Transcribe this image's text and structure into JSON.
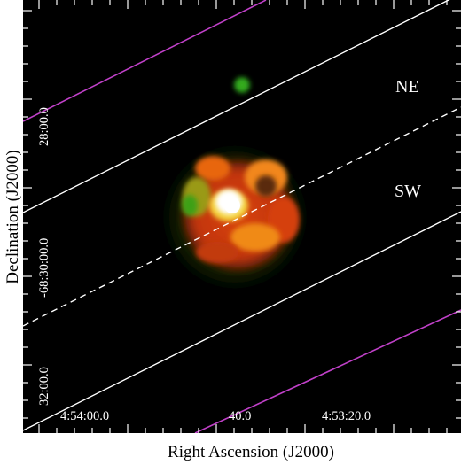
{
  "figure": {
    "x_axis_title": "Right Ascension (J2000)",
    "y_axis_title": "Declination (J2000)",
    "x_tick_labels": [
      "4:54:00.0",
      "40.0",
      "4:53:20.0"
    ],
    "y_tick_labels": [
      "28:00.0",
      "-68:30:00.0",
      "32:00.0"
    ],
    "region_labels": {
      "ne": "NE",
      "sw": "SW"
    },
    "colors": {
      "background": "#000000",
      "frame": "#ffffff",
      "region_line": "#ffffff",
      "outer_line": "#c040c8",
      "emission_red": "#e03a10",
      "emission_orange": "#f07a10",
      "emission_green": "#2a9a1a",
      "hot_spot": "#ffffff"
    }
  }
}
